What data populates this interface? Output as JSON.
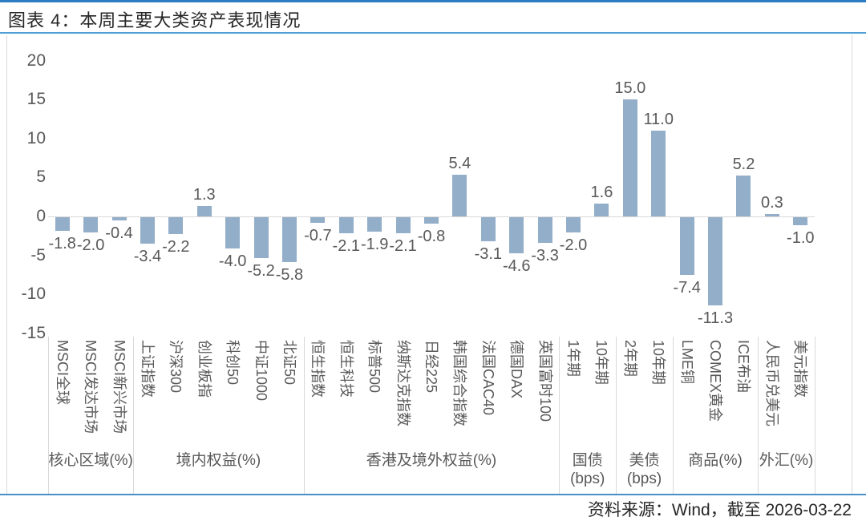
{
  "title": "图表 4：本周主要大类资产表现情况",
  "source": "资料来源：Wind，截至 2026-03-22",
  "colors": {
    "bar": "#92aec9",
    "top_rule_blue": "#2b7cc1",
    "title_rule_blue": "#4f9fd9",
    "bottom_rule_blue": "#4c8fc4",
    "axis_line_gray": "#d9d9d9",
    "label_gray": "#595959",
    "title_text": "#262626"
  },
  "chart_data": {
    "type": "bar",
    "title": "本周主要大类资产表现情况",
    "ylim": [
      -15,
      20
    ],
    "yticks": [
      20,
      15,
      10,
      5,
      0,
      -5,
      -10,
      -15
    ],
    "grid": false,
    "legend": false,
    "groups": [
      {
        "label": "核心区域(%)",
        "items": [
          {
            "name": "MSCI全球",
            "value": -1.8
          },
          {
            "name": "MSCI发达市场",
            "value": -2.0
          },
          {
            "name": "MSCI新兴市场",
            "value": -0.4
          }
        ]
      },
      {
        "label": "境内权益(%)",
        "items": [
          {
            "name": "上证指数",
            "value": -3.4
          },
          {
            "name": "沪深300",
            "value": -2.2
          },
          {
            "name": "创业板指",
            "value": 1.3
          },
          {
            "name": "科创50",
            "value": -4.0
          },
          {
            "name": "中证1000",
            "value": -5.2
          },
          {
            "name": "北证50",
            "value": -5.8
          }
        ]
      },
      {
        "label": "香港及境外权益(%)",
        "items": [
          {
            "name": "恒生指数",
            "value": -0.7
          },
          {
            "name": "恒生科技",
            "value": -2.1
          },
          {
            "name": "标普500",
            "value": -1.9
          },
          {
            "name": "纳斯达克指数",
            "value": -2.1
          },
          {
            "name": "日经225",
            "value": -0.8
          },
          {
            "name": "韩国综合指数",
            "value": 5.4
          },
          {
            "name": "法国CAC40",
            "value": -3.1
          },
          {
            "name": "德国DAX",
            "value": -4.6
          },
          {
            "name": "英国富时100",
            "value": -3.3
          }
        ]
      },
      {
        "label": "国债\n(bps)",
        "items": [
          {
            "name": "1年期",
            "value": -2.0
          },
          {
            "name": "10年期",
            "value": 1.6
          }
        ]
      },
      {
        "label": "美债\n(bps)",
        "items": [
          {
            "name": "2年期",
            "value": 15.0
          },
          {
            "name": "10年期",
            "value": 11.0
          }
        ]
      },
      {
        "label": "商品(%)",
        "items": [
          {
            "name": "LME铜",
            "value": -7.4
          },
          {
            "name": "COMEX黄金",
            "value": -11.3
          },
          {
            "name": "ICE布油",
            "value": 5.2
          }
        ]
      },
      {
        "label": "外汇(%)",
        "items": [
          {
            "name": "人民币兑美元",
            "value": 0.3
          },
          {
            "name": "美元指数",
            "value": -1.0
          }
        ]
      }
    ]
  }
}
